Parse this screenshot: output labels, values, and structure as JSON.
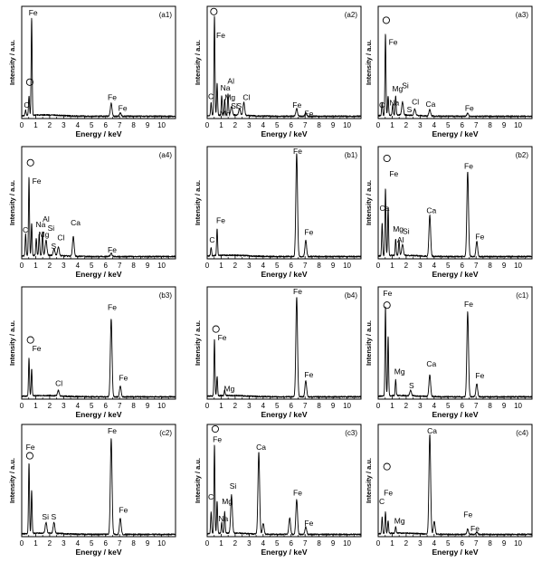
{
  "chart_data": [
    {
      "type": "line",
      "panel_label": "(a1)",
      "xlabel": "Energy / keV",
      "ylabel": "Intensity / a.u.",
      "xlim": [
        0,
        11
      ],
      "ylim": [
        0,
        1
      ],
      "x_ticks": [
        "0",
        "1",
        "2",
        "3",
        "4",
        "5",
        "6",
        "7",
        "8",
        "9",
        "10"
      ],
      "peaks": [
        {
          "x": 0.28,
          "y": 0.05
        },
        {
          "x": 0.52,
          "y": 0.18
        },
        {
          "x": 0.71,
          "y": 0.9
        },
        {
          "x": 6.4,
          "y": 0.12
        },
        {
          "x": 7.05,
          "y": 0.03
        }
      ],
      "labels": [
        {
          "text": "C",
          "x": 0.15,
          "y": 0.1
        },
        {
          "text": "O",
          "x": 0.35,
          "y": 0.31
        },
        {
          "text": "Fe",
          "x": 0.5,
          "y": 0.95
        },
        {
          "text": "Fe",
          "x": 6.15,
          "y": 0.17
        },
        {
          "text": "Fe",
          "x": 6.9,
          "y": 0.07
        }
      ]
    },
    {
      "type": "line",
      "panel_label": "(a2)",
      "xlabel": "Energy / keV",
      "ylabel": "Intensity / a.u.",
      "xlim": [
        0,
        11
      ],
      "ylim": [
        0,
        1
      ],
      "x_ticks": [
        "0",
        "1",
        "2",
        "3",
        "4",
        "5",
        "6",
        "7",
        "8",
        "9",
        "10"
      ],
      "peaks": [
        {
          "x": 0.28,
          "y": 0.12
        },
        {
          "x": 0.52,
          "y": 0.92
        },
        {
          "x": 0.71,
          "y": 0.3
        },
        {
          "x": 1.04,
          "y": 0.18
        },
        {
          "x": 1.25,
          "y": 0.15
        },
        {
          "x": 1.49,
          "y": 0.2
        },
        {
          "x": 1.74,
          "y": 0.08
        },
        {
          "x": 2.31,
          "y": 0.06
        },
        {
          "x": 2.62,
          "y": 0.12
        },
        {
          "x": 6.4,
          "y": 0.07
        },
        {
          "x": 7.05,
          "y": 0.03
        }
      ],
      "labels": [
        {
          "text": "O",
          "x": 0.25,
          "y": 0.96
        },
        {
          "text": "Fe",
          "x": 0.65,
          "y": 0.74
        },
        {
          "text": "C",
          "x": 0.05,
          "y": 0.18
        },
        {
          "text": "Al",
          "x": 1.45,
          "y": 0.32
        },
        {
          "text": "Na",
          "x": 0.95,
          "y": 0.26
        },
        {
          "text": "Mg",
          "x": 1.25,
          "y": 0.17
        },
        {
          "text": "Cl",
          "x": 2.55,
          "y": 0.17
        },
        {
          "text": "S",
          "x": 2.1,
          "y": 0.09
        },
        {
          "text": "Si",
          "x": 1.7,
          "y": 0.09
        },
        {
          "text": "Mn",
          "x": 0.9,
          "y": 0.02
        },
        {
          "text": "Fe",
          "x": 6.1,
          "y": 0.1
        },
        {
          "text": "Fe",
          "x": 6.95,
          "y": 0.02
        }
      ]
    },
    {
      "type": "line",
      "panel_label": "(a3)",
      "xlabel": "Energy / keV",
      "ylabel": "Intensity / a.u.",
      "xlim": [
        0,
        11
      ],
      "ylim": [
        0,
        1
      ],
      "x_ticks": [
        "0",
        "1",
        "2",
        "3",
        "4",
        "5",
        "6",
        "7",
        "8",
        "9",
        "10"
      ],
      "peaks": [
        {
          "x": 0.28,
          "y": 0.12
        },
        {
          "x": 0.52,
          "y": 0.75
        },
        {
          "x": 0.71,
          "y": 0.18
        },
        {
          "x": 1.04,
          "y": 0.1
        },
        {
          "x": 1.25,
          "y": 0.18
        },
        {
          "x": 1.74,
          "y": 0.12
        },
        {
          "x": 2.62,
          "y": 0.06
        },
        {
          "x": 3.69,
          "y": 0.06
        },
        {
          "x": 6.4,
          "y": 0.03
        }
      ],
      "labels": [
        {
          "text": "O",
          "x": 0.35,
          "y": 0.88
        },
        {
          "text": "Fe",
          "x": 0.75,
          "y": 0.68
        },
        {
          "text": "C",
          "x": 0.05,
          "y": 0.1
        },
        {
          "text": "Mg",
          "x": 1.0,
          "y": 0.25
        },
        {
          "text": "Na",
          "x": 0.8,
          "y": 0.12
        },
        {
          "text": "Si",
          "x": 1.7,
          "y": 0.28
        },
        {
          "text": "Cl",
          "x": 2.4,
          "y": 0.13
        },
        {
          "text": "S",
          "x": 2.05,
          "y": 0.06
        },
        {
          "text": "Ca",
          "x": 3.4,
          "y": 0.11
        },
        {
          "text": "Fe",
          "x": 6.2,
          "y": 0.07
        }
      ]
    },
    {
      "type": "line",
      "panel_label": "(a4)",
      "xlabel": "Energy / keV",
      "ylabel": "Intensity / a.u.",
      "xlim": [
        0,
        11
      ],
      "ylim": [
        0,
        1
      ],
      "x_ticks": [
        "0",
        "1",
        "2",
        "3",
        "4",
        "5",
        "6",
        "7",
        "8",
        "9",
        "10"
      ],
      "peaks": [
        {
          "x": 0.28,
          "y": 0.2
        },
        {
          "x": 0.52,
          "y": 0.72
        },
        {
          "x": 0.71,
          "y": 0.3
        },
        {
          "x": 1.04,
          "y": 0.16
        },
        {
          "x": 1.25,
          "y": 0.2
        },
        {
          "x": 1.49,
          "y": 0.22
        },
        {
          "x": 1.74,
          "y": 0.14
        },
        {
          "x": 2.31,
          "y": 0.06
        },
        {
          "x": 2.62,
          "y": 0.08
        },
        {
          "x": 3.69,
          "y": 0.18
        },
        {
          "x": 6.4,
          "y": 0.03
        }
      ],
      "labels": [
        {
          "text": "O",
          "x": 0.4,
          "y": 0.86
        },
        {
          "text": "Fe",
          "x": 0.75,
          "y": 0.69
        },
        {
          "text": "C",
          "x": 0.05,
          "y": 0.24
        },
        {
          "text": "Al",
          "x": 1.5,
          "y": 0.34
        },
        {
          "text": "Na",
          "x": 1.0,
          "y": 0.29
        },
        {
          "text": "Si",
          "x": 1.85,
          "y": 0.26
        },
        {
          "text": "Mg",
          "x": 1.2,
          "y": 0.2
        },
        {
          "text": "Cl",
          "x": 2.55,
          "y": 0.17
        },
        {
          "text": "S",
          "x": 2.1,
          "y": 0.09
        },
        {
          "text": "Ca",
          "x": 3.5,
          "y": 0.31
        },
        {
          "text": "Fe",
          "x": 6.15,
          "y": 0.06
        }
      ]
    },
    {
      "type": "line",
      "panel_label": "(b1)",
      "xlabel": "Energy / keV",
      "ylabel": "Intensity / a.u.",
      "xlim": [
        0,
        11
      ],
      "ylim": [
        0,
        1
      ],
      "x_ticks": [
        "0",
        "1",
        "2",
        "3",
        "4",
        "5",
        "6",
        "7",
        "8",
        "9",
        "10"
      ],
      "peaks": [
        {
          "x": 0.28,
          "y": 0.08
        },
        {
          "x": 0.71,
          "y": 0.25
        },
        {
          "x": 6.4,
          "y": 0.95
        },
        {
          "x": 7.05,
          "y": 0.15
        }
      ],
      "labels": [
        {
          "text": "C",
          "x": 0.15,
          "y": 0.15
        },
        {
          "text": "Fe",
          "x": 0.65,
          "y": 0.33
        },
        {
          "text": "Fe",
          "x": 6.15,
          "y": 1.02
        },
        {
          "text": "Fe",
          "x": 6.95,
          "y": 0.22
        }
      ]
    },
    {
      "type": "line",
      "panel_label": "(b2)",
      "xlabel": "Energy / keV",
      "ylabel": "Intensity / a.u.",
      "xlim": [
        0,
        11
      ],
      "ylim": [
        0,
        1
      ],
      "x_ticks": [
        "0",
        "1",
        "2",
        "3",
        "4",
        "5",
        "6",
        "7",
        "8",
        "9",
        "10"
      ],
      "peaks": [
        {
          "x": 0.28,
          "y": 0.3
        },
        {
          "x": 0.52,
          "y": 0.62
        },
        {
          "x": 0.71,
          "y": 0.45
        },
        {
          "x": 1.25,
          "y": 0.15
        },
        {
          "x": 1.49,
          "y": 0.14
        },
        {
          "x": 1.74,
          "y": 0.1
        },
        {
          "x": 3.69,
          "y": 0.38
        },
        {
          "x": 6.4,
          "y": 0.78
        },
        {
          "x": 7.05,
          "y": 0.14
        }
      ],
      "labels": [
        {
          "text": "O",
          "x": 0.4,
          "y": 0.9
        },
        {
          "text": "Fe",
          "x": 0.8,
          "y": 0.76
        },
        {
          "text": "Ca",
          "x": 0.1,
          "y": 0.44
        },
        {
          "text": "Mg",
          "x": 1.05,
          "y": 0.25
        },
        {
          "text": "Si",
          "x": 1.75,
          "y": 0.23
        },
        {
          "text": "Al",
          "x": 1.35,
          "y": 0.15
        },
        {
          "text": "Ca",
          "x": 3.45,
          "y": 0.42
        },
        {
          "text": "Fe",
          "x": 6.15,
          "y": 0.83
        },
        {
          "text": "Fe",
          "x": 6.95,
          "y": 0.18
        }
      ]
    },
    {
      "type": "line",
      "panel_label": "(b3)",
      "xlabel": "Energy / keV",
      "ylabel": "Intensity / a.u.",
      "xlim": [
        0,
        11
      ],
      "ylim": [
        0,
        1
      ],
      "x_ticks": [
        "0",
        "1",
        "2",
        "3",
        "4",
        "5",
        "6",
        "7",
        "8",
        "9",
        "10"
      ],
      "peaks": [
        {
          "x": 0.52,
          "y": 0.35
        },
        {
          "x": 0.71,
          "y": 0.25
        },
        {
          "x": 2.62,
          "y": 0.05
        },
        {
          "x": 6.4,
          "y": 0.72
        },
        {
          "x": 7.05,
          "y": 0.1
        }
      ],
      "labels": [
        {
          "text": "O",
          "x": 0.4,
          "y": 0.52
        },
        {
          "text": "Fe",
          "x": 0.75,
          "y": 0.44
        },
        {
          "text": "Cl",
          "x": 2.4,
          "y": 0.12
        },
        {
          "text": "Fe",
          "x": 6.15,
          "y": 0.82
        },
        {
          "text": "Fe",
          "x": 6.95,
          "y": 0.17
        }
      ]
    },
    {
      "type": "line",
      "panel_label": "(b4)",
      "xlabel": "Energy / keV",
      "ylabel": "Intensity / a.u.",
      "xlim": [
        0,
        11
      ],
      "ylim": [
        0,
        1
      ],
      "x_ticks": [
        "0",
        "1",
        "2",
        "3",
        "4",
        "5",
        "6",
        "7",
        "8",
        "9",
        "10"
      ],
      "peaks": [
        {
          "x": 0.52,
          "y": 0.52
        },
        {
          "x": 0.71,
          "y": 0.18
        },
        {
          "x": 1.25,
          "y": 0.05
        },
        {
          "x": 6.4,
          "y": 0.92
        },
        {
          "x": 7.05,
          "y": 0.15
        }
      ],
      "labels": [
        {
          "text": "O",
          "x": 0.4,
          "y": 0.62
        },
        {
          "text": "Fe",
          "x": 0.75,
          "y": 0.54
        },
        {
          "text": "Mg",
          "x": 1.2,
          "y": 0.07
        },
        {
          "text": "Fe",
          "x": 6.15,
          "y": 0.98
        },
        {
          "text": "Fe",
          "x": 6.95,
          "y": 0.2
        }
      ]
    },
    {
      "type": "line",
      "panel_label": "(c1)",
      "xlabel": "Energy / keV",
      "ylabel": "Intensity / a.u.",
      "xlim": [
        0,
        11
      ],
      "ylim": [
        0,
        1
      ],
      "x_ticks": [
        "0",
        "1",
        "2",
        "3",
        "4",
        "5",
        "6",
        "7",
        "8",
        "9",
        "10"
      ],
      "peaks": [
        {
          "x": 0.52,
          "y": 0.82
        },
        {
          "x": 0.71,
          "y": 0.55
        },
        {
          "x": 1.25,
          "y": 0.15
        },
        {
          "x": 2.31,
          "y": 0.05
        },
        {
          "x": 3.69,
          "y": 0.2
        },
        {
          "x": 6.4,
          "y": 0.78
        },
        {
          "x": 7.05,
          "y": 0.12
        }
      ],
      "labels": [
        {
          "text": "Fe",
          "x": 0.35,
          "y": 0.95
        },
        {
          "text": "O",
          "x": 0.4,
          "y": 0.84
        },
        {
          "text": "Mg",
          "x": 1.15,
          "y": 0.23
        },
        {
          "text": "S",
          "x": 2.2,
          "y": 0.1
        },
        {
          "text": "Ca",
          "x": 3.45,
          "y": 0.3
        },
        {
          "text": "Fe",
          "x": 6.15,
          "y": 0.85
        },
        {
          "text": "Fe",
          "x": 6.95,
          "y": 0.19
        }
      ]
    },
    {
      "type": "line",
      "panel_label": "(c2)",
      "xlabel": "Energy / keV",
      "ylabel": "Intensity / a.u.",
      "xlim": [
        0,
        11
      ],
      "ylim": [
        0,
        1
      ],
      "x_ticks": [
        "0",
        "1",
        "2",
        "3",
        "4",
        "5",
        "6",
        "7",
        "8",
        "9",
        "10"
      ],
      "peaks": [
        {
          "x": 0.52,
          "y": 0.65
        },
        {
          "x": 0.71,
          "y": 0.4
        },
        {
          "x": 1.74,
          "y": 0.1
        },
        {
          "x": 2.31,
          "y": 0.1
        },
        {
          "x": 6.4,
          "y": 0.88
        },
        {
          "x": 7.05,
          "y": 0.15
        }
      ],
      "labels": [
        {
          "text": "Fe",
          "x": 0.3,
          "y": 0.8
        },
        {
          "text": "O",
          "x": 0.35,
          "y": 0.72
        },
        {
          "text": "Si",
          "x": 1.45,
          "y": 0.16
        },
        {
          "text": "S",
          "x": 2.1,
          "y": 0.16
        },
        {
          "text": "Fe",
          "x": 6.15,
          "y": 0.95
        },
        {
          "text": "Fe",
          "x": 6.95,
          "y": 0.22
        }
      ]
    },
    {
      "type": "line",
      "panel_label": "(c3)",
      "xlabel": "Energy / keV",
      "ylabel": "Intensity / a.u.",
      "xlim": [
        0,
        11
      ],
      "ylim": [
        0,
        1
      ],
      "x_ticks": [
        "0",
        "1",
        "2",
        "3",
        "4",
        "5",
        "6",
        "7",
        "8",
        "9",
        "10"
      ],
      "peaks": [
        {
          "x": 0.28,
          "y": 0.2
        },
        {
          "x": 0.52,
          "y": 0.82
        },
        {
          "x": 0.71,
          "y": 0.3
        },
        {
          "x": 1.04,
          "y": 0.1
        },
        {
          "x": 1.25,
          "y": 0.2
        },
        {
          "x": 1.74,
          "y": 0.35
        },
        {
          "x": 3.69,
          "y": 0.75
        },
        {
          "x": 4.01,
          "y": 0.1
        },
        {
          "x": 5.9,
          "y": 0.15
        },
        {
          "x": 6.4,
          "y": 0.32
        },
        {
          "x": 7.05,
          "y": 0.07
        }
      ],
      "labels": [
        {
          "text": "O",
          "x": 0.35,
          "y": 0.98
        },
        {
          "text": "Fe",
          "x": 0.4,
          "y": 0.87
        },
        {
          "text": "C",
          "x": 0.05,
          "y": 0.34
        },
        {
          "text": "Si",
          "x": 1.6,
          "y": 0.44
        },
        {
          "text": "Mg",
          "x": 1.05,
          "y": 0.3
        },
        {
          "text": "Na",
          "x": 0.8,
          "y": 0.14
        },
        {
          "text": "Ca",
          "x": 3.5,
          "y": 0.8
        },
        {
          "text": "Fe",
          "x": 6.15,
          "y": 0.38
        },
        {
          "text": "Fe",
          "x": 6.95,
          "y": 0.1
        }
      ]
    },
    {
      "type": "line",
      "panel_label": "(c4)",
      "xlabel": "Energy / keV",
      "ylabel": "Intensity / a.u.",
      "xlim": [
        0,
        11
      ],
      "ylim": [
        0,
        1
      ],
      "x_ticks": [
        "0",
        "1",
        "2",
        "3",
        "4",
        "5",
        "6",
        "7",
        "8",
        "9",
        "10"
      ],
      "peaks": [
        {
          "x": 0.28,
          "y": 0.15
        },
        {
          "x": 0.52,
          "y": 0.2
        },
        {
          "x": 0.71,
          "y": 0.12
        },
        {
          "x": 1.25,
          "y": 0.06
        },
        {
          "x": 3.69,
          "y": 0.92
        },
        {
          "x": 4.01,
          "y": 0.12
        },
        {
          "x": 6.4,
          "y": 0.05
        },
        {
          "x": 7.05,
          "y": 0.02
        }
      ],
      "labels": [
        {
          "text": "O",
          "x": 0.4,
          "y": 0.62
        },
        {
          "text": "Fe",
          "x": 0.4,
          "y": 0.38
        },
        {
          "text": "C",
          "x": 0.05,
          "y": 0.3
        },
        {
          "text": "Mg",
          "x": 1.15,
          "y": 0.12
        },
        {
          "text": "Ca",
          "x": 3.5,
          "y": 0.95
        },
        {
          "text": "Fe",
          "x": 6.1,
          "y": 0.18
        },
        {
          "text": "Fe",
          "x": 6.6,
          "y": 0.05
        }
      ]
    }
  ]
}
